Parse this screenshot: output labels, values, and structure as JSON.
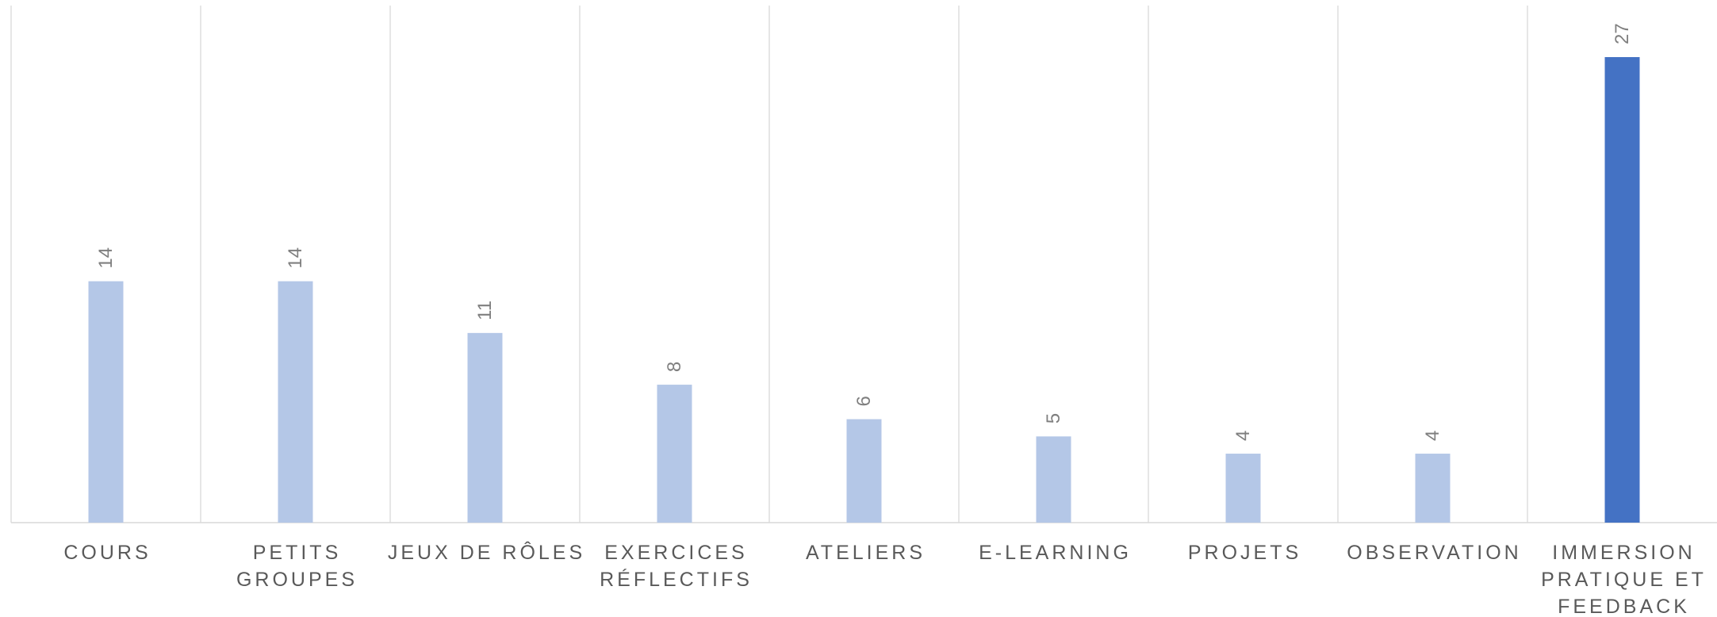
{
  "chart_data": {
    "type": "bar",
    "title": "",
    "xlabel": "",
    "ylabel": "",
    "categories": [
      [
        "COURS"
      ],
      [
        "PETITS",
        "GROUPES"
      ],
      [
        "JEUX DE RÔLES"
      ],
      [
        "EXERCICES",
        "RÉFLECTIFS"
      ],
      [
        "ATELIERS"
      ],
      [
        "E-LEARNING"
      ],
      [
        "PROJETS"
      ],
      [
        "OBSERVATION"
      ],
      [
        "IMMERSION",
        "PRATIQUE ET",
        "FEEDBACK"
      ]
    ],
    "values": [
      14,
      14,
      11,
      8,
      6,
      5,
      4,
      4,
      27
    ],
    "ylim": [
      0,
      30
    ],
    "grid": "vertical category separators",
    "legend": "none",
    "colors": {
      "bar": "#b4c7e7",
      "highlight_bar": "#4472c4",
      "highlight_index": 8,
      "data_label": "#7f7f7f",
      "tick_label": "#595959",
      "grid": "#d9d9d9"
    }
  }
}
